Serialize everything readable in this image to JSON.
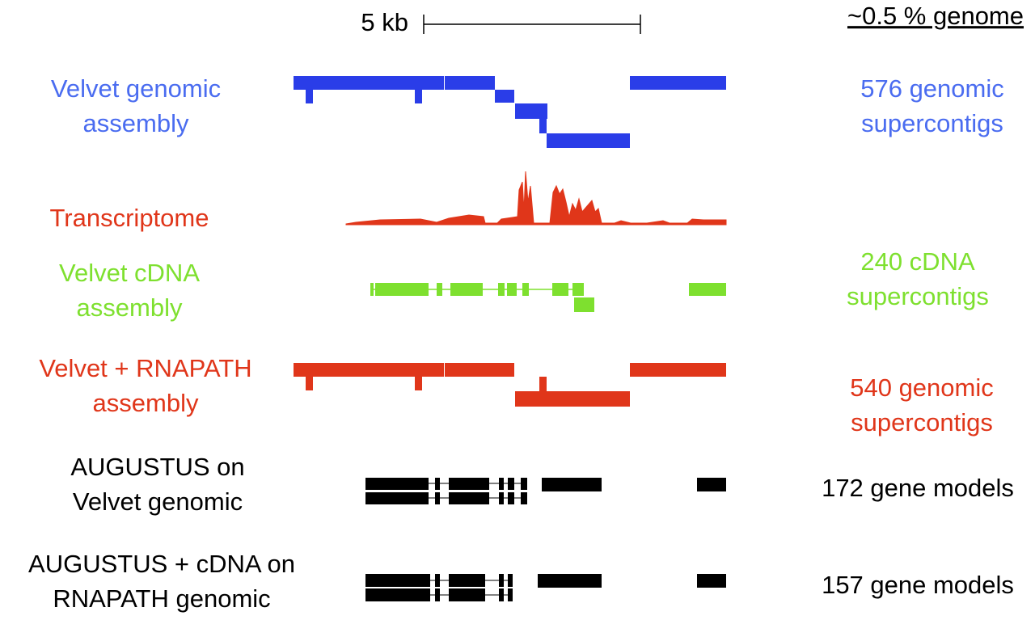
{
  "header": {
    "scale_label": "5 kb",
    "genome_label": "~0.5 % genome"
  },
  "tracks": [
    {
      "label_lines": [
        "Velvet genomic",
        "assembly"
      ],
      "summary_lines": [
        "576 genomic",
        "supercontigs"
      ],
      "color": "#4a6cf0"
    },
    {
      "label_lines": [
        "Transcriptome"
      ],
      "summary_lines": [],
      "color": "#e0361a"
    },
    {
      "label_lines": [
        "Velvet cDNA",
        "assembly"
      ],
      "summary_lines": [
        "240 cDNA",
        "supercontigs"
      ],
      "color": "#7ee02f"
    },
    {
      "label_lines": [
        "Velvet + RNAPATH",
        "assembly"
      ],
      "summary_lines": [
        "540 genomic",
        "supercontigs"
      ],
      "color": "#e0361a"
    },
    {
      "label_lines": [
        "AUGUSTUS on",
        "Velvet genomic"
      ],
      "summary_lines": [
        "172 gene models"
      ],
      "color": "#000000"
    },
    {
      "label_lines": [
        "AUGUSTUS + cDNA on",
        "RNAPATH genomic"
      ],
      "summary_lines": [
        "157 gene models"
      ],
      "color": "#000000"
    }
  ]
}
